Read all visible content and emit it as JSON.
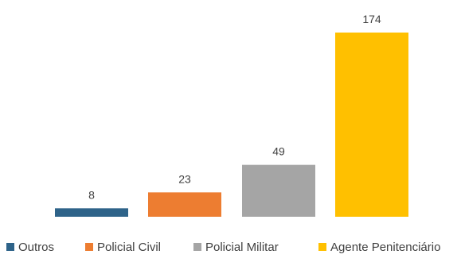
{
  "chart_data": {
    "type": "bar",
    "categories": [
      "Outros",
      "Policial Civil",
      "Policial Militar",
      "Agente Penitenciário"
    ],
    "values": [
      8,
      23,
      49,
      174
    ],
    "colors": [
      "#2e6389",
      "#ed7d31",
      "#a5a5a5",
      "#ffc000"
    ],
    "title": "",
    "xlabel": "",
    "ylabel": "",
    "ylim": [
      0,
      174
    ],
    "grid": false,
    "legend": "bottom",
    "data_labels": true
  }
}
